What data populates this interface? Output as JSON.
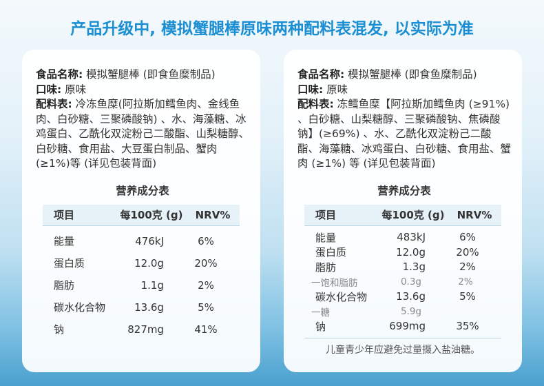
{
  "header": {
    "title": "产品升级中, 模拟蟹腿棒原味两种配料表混发, 以实际为准"
  },
  "cards": [
    {
      "name_label": "食品名称:",
      "name": "模拟蟹腿棒 (即食鱼糜制品)",
      "flavor_label": "口味:",
      "flavor": "原味",
      "ingredients_label": "配料表:",
      "ingredients": "冷冻鱼糜(阿拉斯加鳕鱼肉、金线鱼肉、白砂糖、三聚磷酸钠) 、水、海藻糖、冰鸡蛋白、乙酰化双淀粉己二酸酯、山梨糖醇、白砂糖、食用盐、大豆蛋白制品、蟹肉 (≥1%)等 (详见包装背面)",
      "nutrition_title": "营养成分表",
      "headers": [
        "项目",
        "每100克 (g)",
        "NRV%"
      ],
      "rows": [
        [
          "能量",
          "476kJ",
          "6%"
        ],
        [
          "蛋白质",
          "12.0g",
          "20%"
        ],
        [
          "脂肪",
          "1.1g",
          "2%"
        ],
        [
          "碳水化合物",
          "13.6g",
          "5%"
        ],
        [
          "钠",
          "827mg",
          "41%"
        ]
      ]
    },
    {
      "name_label": "食品名称:",
      "name": "模拟蟹腿棒 (即食鱼糜制品)",
      "flavor_label": "口味:",
      "flavor": "原味",
      "ingredients_label": "配料表:",
      "ingredients": "冻鳕鱼糜【阿拉斯加鳕鱼肉 (≥91%) 、白砂糖、山梨糖醇、三聚磷酸钠、焦磷酸钠】(≥69%) 、水、乙酰化双淀粉己二酸酯、海藻糖、冰鸡蛋白、白砂糖、食用盐、蟹肉 (≥1%) 等 (详见包装背面)",
      "nutrition_title": "营养成分表",
      "headers": [
        "项目",
        "每100克 (g)",
        "NRV%"
      ],
      "rows": [
        [
          "能量",
          "483kJ",
          "6%"
        ],
        [
          "蛋白质",
          "12.0g",
          "20%"
        ],
        [
          "脂肪",
          "1.3g",
          "2%"
        ],
        [
          "一饱和脂肪",
          "0.3g",
          "2%"
        ],
        [
          "碳水化合物",
          "13.6g",
          "5%"
        ],
        [
          "一糖",
          "5.9g",
          null
        ],
        [
          "钠",
          "699mg",
          "35%"
        ]
      ],
      "footnote": "儿童青少年应避免过量摄入盐油糖。"
    }
  ]
}
